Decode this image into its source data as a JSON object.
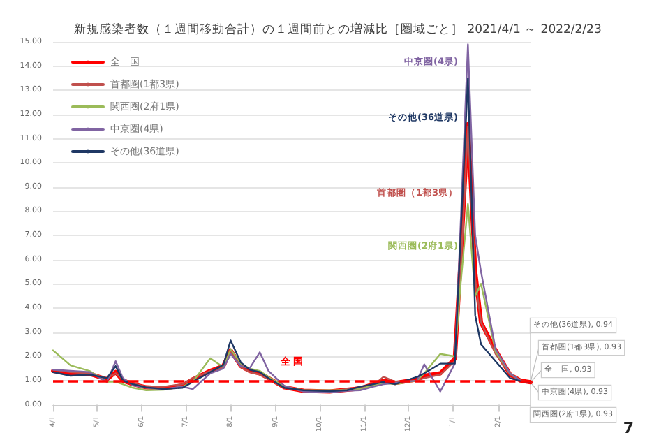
{
  "chart_data": {
    "type": "line",
    "title": "新規感染者数（１週間移動合計）の１週間前との増減比［圏域ごと］ 2021/4/1 ～ 2022/2/23",
    "x": [
      "2021-04-01",
      "2021-04-13",
      "2021-04-26",
      "2021-05-08",
      "2021-05-14",
      "2021-05-19",
      "2021-05-26",
      "2021-06-04",
      "2021-06-16",
      "2021-06-29",
      "2021-07-06",
      "2021-07-18",
      "2021-07-27",
      "2021-08-01",
      "2021-08-08",
      "2021-08-14",
      "2021-08-21",
      "2021-08-27",
      "2021-09-07",
      "2021-09-20",
      "2021-10-08",
      "2021-10-20",
      "2021-10-29",
      "2021-11-07",
      "2021-11-14",
      "2021-11-22",
      "2021-12-07",
      "2021-12-12",
      "2021-12-23",
      "2022-01-02",
      "2022-01-06",
      "2022-01-11",
      "2022-01-16",
      "2022-01-20",
      "2022-01-30",
      "2022-02-09",
      "2022-02-16",
      "2022-02-23"
    ],
    "series": [
      {
        "name": "全　国",
        "color": "#ff0000",
        "values": [
          1.4,
          1.3,
          1.28,
          1.05,
          1.35,
          1.0,
          0.85,
          0.72,
          0.68,
          0.8,
          1.05,
          1.4,
          1.6,
          2.25,
          1.6,
          1.4,
          1.3,
          1.1,
          0.72,
          0.58,
          0.55,
          0.62,
          0.68,
          0.85,
          1.0,
          0.9,
          1.05,
          1.2,
          1.3,
          1.9,
          6.0,
          11.6,
          5.5,
          3.4,
          2.25,
          1.25,
          1.0,
          0.93
        ]
      },
      {
        "name": "首都圏(1都3県)",
        "color": "#c0504d",
        "values": [
          1.45,
          1.35,
          1.3,
          1.1,
          1.3,
          1.05,
          0.88,
          0.75,
          0.75,
          0.85,
          1.1,
          1.4,
          1.55,
          2.2,
          1.55,
          1.35,
          1.25,
          1.05,
          0.7,
          0.58,
          0.55,
          0.65,
          0.7,
          0.8,
          1.16,
          0.95,
          1.0,
          1.1,
          1.25,
          1.8,
          5.5,
          11.5,
          5.2,
          3.4,
          2.1,
          1.25,
          1.0,
          0.93
        ]
      },
      {
        "name": "関西圏(2府1県)",
        "color": "#9bbb59",
        "values": [
          2.25,
          1.63,
          1.4,
          0.95,
          0.95,
          0.85,
          0.7,
          0.6,
          0.62,
          0.75,
          0.95,
          1.92,
          1.55,
          2.3,
          1.7,
          1.5,
          1.4,
          1.15,
          0.75,
          0.6,
          0.6,
          0.6,
          0.65,
          0.8,
          0.9,
          0.85,
          1.0,
          1.3,
          2.1,
          2.0,
          5.0,
          8.3,
          4.5,
          5.0,
          2.2,
          1.3,
          1.0,
          0.93
        ]
      },
      {
        "name": "中京圏(4県)",
        "color": "#8064a2",
        "values": [
          1.45,
          1.4,
          1.35,
          0.95,
          1.8,
          1.1,
          0.8,
          0.7,
          0.65,
          0.75,
          0.65,
          1.3,
          1.5,
          2.1,
          1.6,
          1.5,
          2.17,
          1.4,
          0.78,
          0.55,
          0.52,
          0.58,
          0.6,
          0.75,
          0.85,
          0.9,
          1.0,
          1.67,
          0.55,
          1.7,
          7.5,
          14.9,
          7.0,
          5.5,
          2.3,
          1.3,
          1.0,
          0.93
        ]
      },
      {
        "name": "その他(36道県)",
        "color": "#1f3864",
        "values": [
          1.35,
          1.2,
          1.25,
          1.1,
          1.6,
          1.0,
          0.85,
          0.72,
          0.65,
          0.7,
          0.95,
          1.35,
          1.65,
          2.66,
          1.75,
          1.45,
          1.35,
          1.1,
          0.7,
          0.6,
          0.56,
          0.6,
          0.75,
          0.85,
          0.95,
          0.85,
          1.15,
          1.3,
          1.7,
          1.7,
          7.0,
          13.5,
          3.7,
          2.5,
          1.8,
          1.1,
          0.98,
          0.94
        ]
      }
    ],
    "xlim": [
      "2021-04-01",
      "2022-02-23"
    ],
    "ylim": [
      0,
      15
    ],
    "yticks": [
      {
        "value": 0,
        "label": "0.00"
      },
      {
        "value": 1,
        "label": "1.00"
      },
      {
        "value": 2,
        "label": "2.00"
      },
      {
        "value": 3,
        "label": "3.00"
      },
      {
        "value": 4,
        "label": "4.00"
      },
      {
        "value": 5,
        "label": "5.00"
      },
      {
        "value": 6,
        "label": "6.00"
      },
      {
        "value": 7,
        "label": "7.00"
      },
      {
        "value": 8,
        "label": "8.00"
      },
      {
        "value": 9,
        "label": "9.00"
      },
      {
        "value": 10,
        "label": "10.00"
      },
      {
        "value": 11,
        "label": "11.00"
      },
      {
        "value": 12,
        "label": "12.00"
      },
      {
        "value": 13,
        "label": "13.00"
      },
      {
        "value": 14,
        "label": "14.00"
      },
      {
        "value": 15,
        "label": "15.00"
      }
    ],
    "xticks": [
      {
        "value": "2021-04-01",
        "label": "4/1"
      },
      {
        "value": "2021-05-01",
        "label": "5/1"
      },
      {
        "value": "2021-06-01",
        "label": "6/1"
      },
      {
        "value": "2021-07-01",
        "label": "7/1"
      },
      {
        "value": "2021-08-01",
        "label": "8/1"
      },
      {
        "value": "2021-09-01",
        "label": "9/1"
      },
      {
        "value": "2021-10-01",
        "label": "10/1"
      },
      {
        "value": "2021-11-01",
        "label": "11/1"
      },
      {
        "value": "2021-12-01",
        "label": "12/1"
      },
      {
        "value": "2022-01-01",
        "label": "1/1"
      },
      {
        "value": "2022-02-01",
        "label": "2/1"
      }
    ],
    "grid": "y",
    "legend": "top left",
    "marker": "none",
    "line_style": "solid",
    "ref_lines": [
      {
        "axis": "y",
        "value": 1,
        "label": "全 国",
        "color": "#ff0000",
        "line_style": "dashed"
      }
    ],
    "annotations": [
      "中京圏(4県)",
      "その他(36道県)",
      "首都圏（1都3県）",
      "関西圏(2府1県)",
      {
        "text": "その他(36道県), 0.94",
        "x": "2022-02-23",
        "y": 0.94
      },
      {
        "text": "首都圏(1都3県), 0.93",
        "x": "2022-02-23",
        "y": 0.93
      },
      {
        "text": "全　国, 0.93",
        "x": "2022-02-23",
        "y": 0.93
      },
      {
        "text": "中京圏(4県), 0.93",
        "x": "2022-02-23",
        "y": 0.93
      },
      {
        "text": "関西圏(2府1県), 0.93",
        "x": "2022-02-23",
        "y": 0.93
      },
      "7"
    ]
  }
}
